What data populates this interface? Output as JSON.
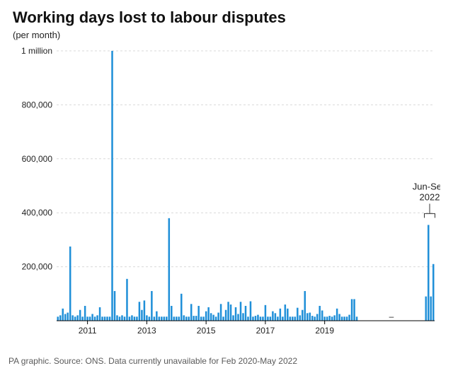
{
  "title": "Working days lost to labour disputes",
  "subtitle": "(per month)",
  "source": "PA graphic. Source: ONS. Data currently unavailable for Feb 2020-May 2022",
  "chart": {
    "type": "bar",
    "ylim": [
      0,
      1000000
    ],
    "yticks": [
      {
        "v": 200000,
        "label": "200,000"
      },
      {
        "v": 400000,
        "label": "400,000"
      },
      {
        "v": 600000,
        "label": "600,000"
      },
      {
        "v": 800000,
        "label": "800,000"
      },
      {
        "v": 1000000,
        "label": "1 million"
      }
    ],
    "xticks": [
      {
        "i": 12,
        "label": "2011"
      },
      {
        "i": 36,
        "label": "2013"
      },
      {
        "i": 60,
        "label": "2015"
      },
      {
        "i": 84,
        "label": "2017"
      },
      {
        "i": 108,
        "label": "2019"
      }
    ],
    "bar_color": "#1f8fd8",
    "axis_color": "#000000",
    "grid_color": "#d9d9d9",
    "annot_line_color": "#333333",
    "background_color": "#ffffff",
    "tick_fontsize": 12,
    "annot_fontsize": 13,
    "gap_label": "–",
    "annotation": {
      "label_line1": "Jun-Sep",
      "label_line2": "2022",
      "start_i": 149,
      "end_i": 152
    },
    "values": [
      15000,
      20000,
      45000,
      25000,
      30000,
      275000,
      20000,
      15000,
      20000,
      40000,
      15000,
      55000,
      15000,
      15000,
      25000,
      15000,
      20000,
      50000,
      15000,
      15000,
      15000,
      15000,
      1000000,
      110000,
      20000,
      15000,
      20000,
      15000,
      155000,
      15000,
      20000,
      15000,
      15000,
      70000,
      40000,
      75000,
      20000,
      15000,
      110000,
      15000,
      35000,
      15000,
      15000,
      15000,
      15000,
      380000,
      55000,
      15000,
      15000,
      15000,
      100000,
      20000,
      15000,
      15000,
      62000,
      18000,
      18000,
      55000,
      15000,
      15000,
      35000,
      50000,
      28000,
      22000,
      15000,
      30000,
      62000,
      15000,
      40000,
      70000,
      60000,
      20000,
      50000,
      25000,
      70000,
      28000,
      55000,
      15000,
      72000,
      15000,
      18000,
      22000,
      15000,
      15000,
      58000,
      15000,
      15000,
      35000,
      28000,
      15000,
      45000,
      15000,
      60000,
      45000,
      15000,
      15000,
      15000,
      48000,
      20000,
      40000,
      110000,
      28000,
      30000,
      18000,
      15000,
      25000,
      55000,
      38000,
      15000,
      15000,
      18000,
      15000,
      20000,
      45000,
      25000,
      15000,
      15000,
      15000,
      22000,
      80000,
      80000,
      15000,
      null,
      null,
      null,
      null,
      null,
      null,
      null,
      null,
      null,
      null,
      null,
      null,
      null,
      null,
      null,
      null,
      null,
      null,
      null,
      null,
      null,
      null,
      null,
      null,
      null,
      null,
      null,
      90000,
      355000,
      90000,
      210000
    ]
  }
}
